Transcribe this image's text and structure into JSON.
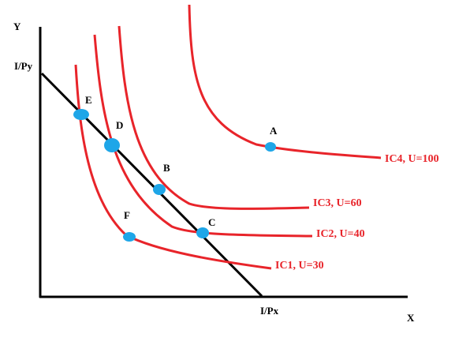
{
  "axes": {
    "y_label": "Y",
    "x_label": "X",
    "y_intercept_label": "I/Py",
    "x_intercept_label": "I/Px"
  },
  "curves": [
    {
      "id": "ic1",
      "label": "IC1, U=30"
    },
    {
      "id": "ic2",
      "label": "IC2, U=40"
    },
    {
      "id": "ic3",
      "label": "IC3, U=60"
    },
    {
      "id": "ic4",
      "label": "IC4, U=100"
    }
  ],
  "points": [
    {
      "id": "a",
      "label": "A"
    },
    {
      "id": "b",
      "label": "B"
    },
    {
      "id": "c",
      "label": "C"
    },
    {
      "id": "d",
      "label": "D"
    },
    {
      "id": "e",
      "label": "E"
    },
    {
      "id": "f",
      "label": "F"
    }
  ],
  "colors": {
    "curve": "#e8242a",
    "point": "#1ea6e8",
    "axis": "#000000",
    "budget_line": "#000000"
  }
}
